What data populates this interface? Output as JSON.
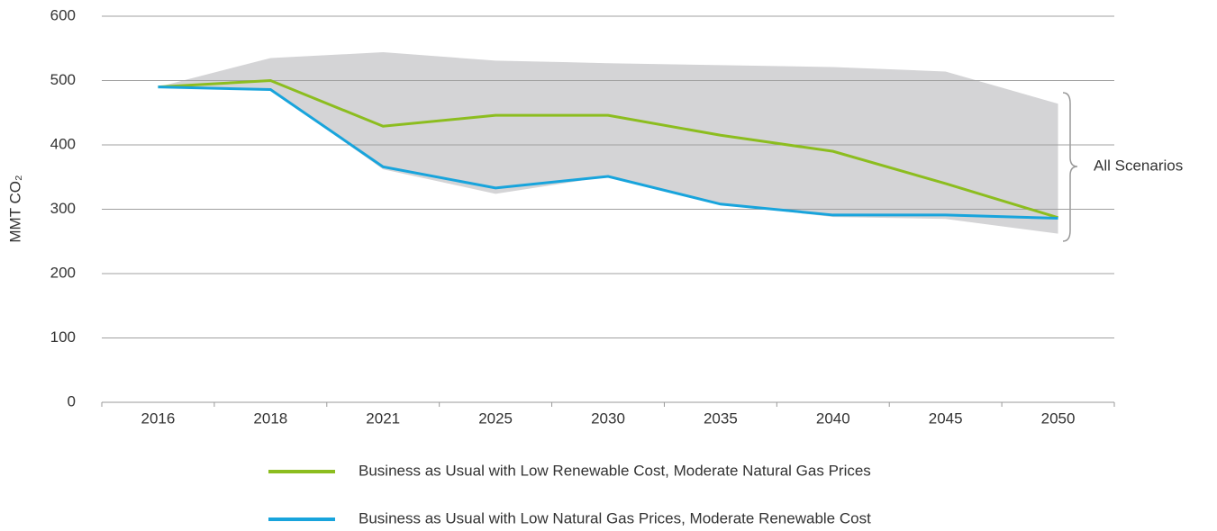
{
  "chart_data": {
    "type": "line",
    "y_label": "MMT CO₂",
    "annotation": "All Scenarios",
    "categories": [
      "2016",
      "2018",
      "2021",
      "2025",
      "2030",
      "2035",
      "2040",
      "2045",
      "2050"
    ],
    "band": {
      "color": "#d4d4d6",
      "upper": [
        490,
        535,
        544,
        531,
        527,
        524,
        521,
        514,
        464
      ],
      "lower": [
        490,
        486,
        362,
        324,
        351,
        308,
        288,
        285,
        262
      ]
    },
    "series": [
      {
        "name": "Business as Usual with Low Renewable Cost, Moderate Natural Gas Prices",
        "color": "#8cbd1f",
        "values": [
          490,
          500,
          429,
          446,
          446,
          415,
          390,
          340,
          287
        ]
      },
      {
        "name": "Business as Usual with Low Natural Gas Prices, Moderate Renewable Cost",
        "color": "#18a4dc",
        "values": [
          490,
          486,
          366,
          333,
          351,
          308,
          291,
          291,
          286
        ]
      }
    ],
    "ylim": [
      0,
      600
    ],
    "yticks": [
      0,
      100,
      200,
      300,
      400,
      500,
      600
    ],
    "grid": true
  }
}
